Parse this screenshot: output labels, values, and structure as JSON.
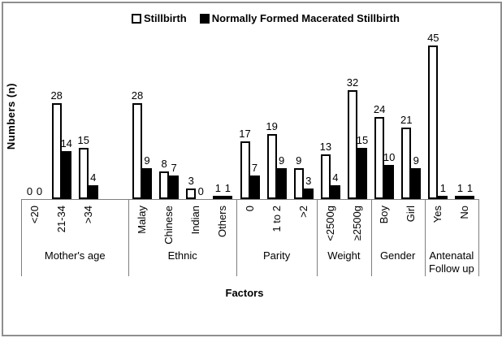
{
  "colors": {
    "series1_fill": "#ffffff",
    "series2_fill": "#000000",
    "bar_border": "#000000",
    "axis_line": "#7f7f7f",
    "page_border": "#8f8f8f",
    "text": "#000000"
  },
  "legend": {
    "items": [
      {
        "label": "Stillbirth",
        "swatch": "white"
      },
      {
        "label": "Normally Formed Macerated Stillbirth",
        "swatch": "black"
      }
    ]
  },
  "chart_data": {
    "type": "bar",
    "title": "",
    "ylabel": "Numbers (n)",
    "xlabel": "Factors",
    "ylim": [
      0,
      50
    ],
    "grid": false,
    "legend_position": "top",
    "value_labels": true,
    "series_names": [
      "Stillbirth",
      "Normally Formed Macerated Stillbirth"
    ],
    "groups": [
      {
        "label": "Mother's age",
        "categories": [
          "<20",
          "21-34",
          ">34"
        ],
        "stillbirth": [
          0,
          28,
          15
        ],
        "macerated": [
          0,
          14,
          4
        ]
      },
      {
        "label": "Ethnic",
        "categories": [
          "Malay",
          "Chinese",
          "Indian",
          "Others"
        ],
        "stillbirth": [
          28,
          8,
          3,
          1
        ],
        "macerated": [
          9,
          7,
          0,
          1
        ]
      },
      {
        "label": "Parity",
        "categories": [
          "0",
          "1 to 2",
          ">2"
        ],
        "stillbirth": [
          17,
          19,
          9
        ],
        "macerated": [
          7,
          9,
          3
        ]
      },
      {
        "label": "Weight",
        "categories": [
          "<2500g",
          "≥2500g"
        ],
        "stillbirth": [
          13,
          32
        ],
        "macerated": [
          4,
          15
        ]
      },
      {
        "label": "Gender",
        "categories": [
          "Boy",
          "Girl"
        ],
        "stillbirth": [
          24,
          21
        ],
        "macerated": [
          10,
          9
        ]
      },
      {
        "label": "Antenatal Follow up",
        "categories": [
          "Yes",
          "No"
        ],
        "stillbirth": [
          45,
          1
        ],
        "macerated": [
          1,
          1
        ]
      }
    ]
  }
}
